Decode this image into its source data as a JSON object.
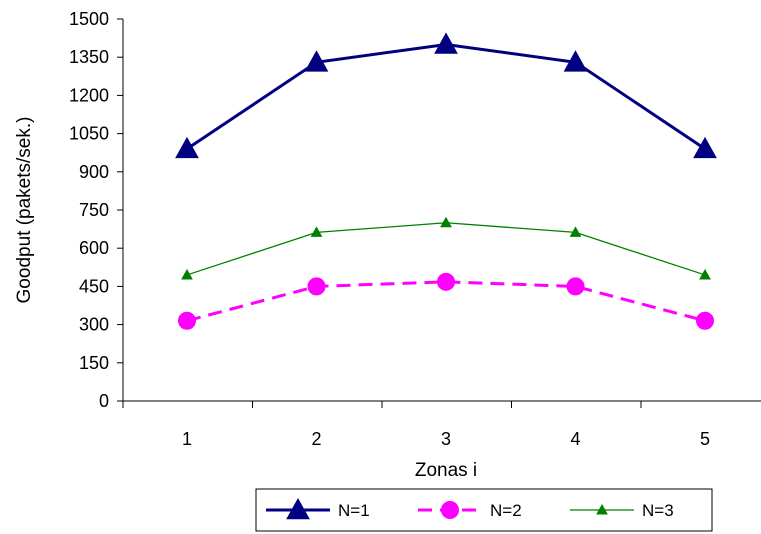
{
  "chart_data": {
    "type": "line",
    "title": "",
    "xlabel": "Zonas i",
    "ylabel": "Goodput  (pakets/sek.)",
    "x": [
      "1",
      "2",
      "3",
      "4",
      "5"
    ],
    "ylim": [
      0,
      1500
    ],
    "yticks": [
      "0",
      "150",
      "300",
      "450",
      "600",
      "750",
      "900",
      "1050",
      "1200",
      "1350",
      "1500"
    ],
    "grid": false,
    "legend_position": "bottom",
    "series": [
      {
        "name": "N=1",
        "values": [
          990,
          1330,
          1400,
          1330,
          990
        ],
        "color": "#000080",
        "marker": "triangle",
        "line": "solid"
      },
      {
        "name": "N=2",
        "values": [
          315,
          450,
          468,
          450,
          315
        ],
        "color": "#FF00FF",
        "marker": "circle",
        "line": "dashed"
      },
      {
        "name": "N=3",
        "values": [
          495,
          662,
          700,
          662,
          495
        ],
        "color": "#008000",
        "marker": "triangle-small",
        "line": "solid"
      }
    ]
  }
}
